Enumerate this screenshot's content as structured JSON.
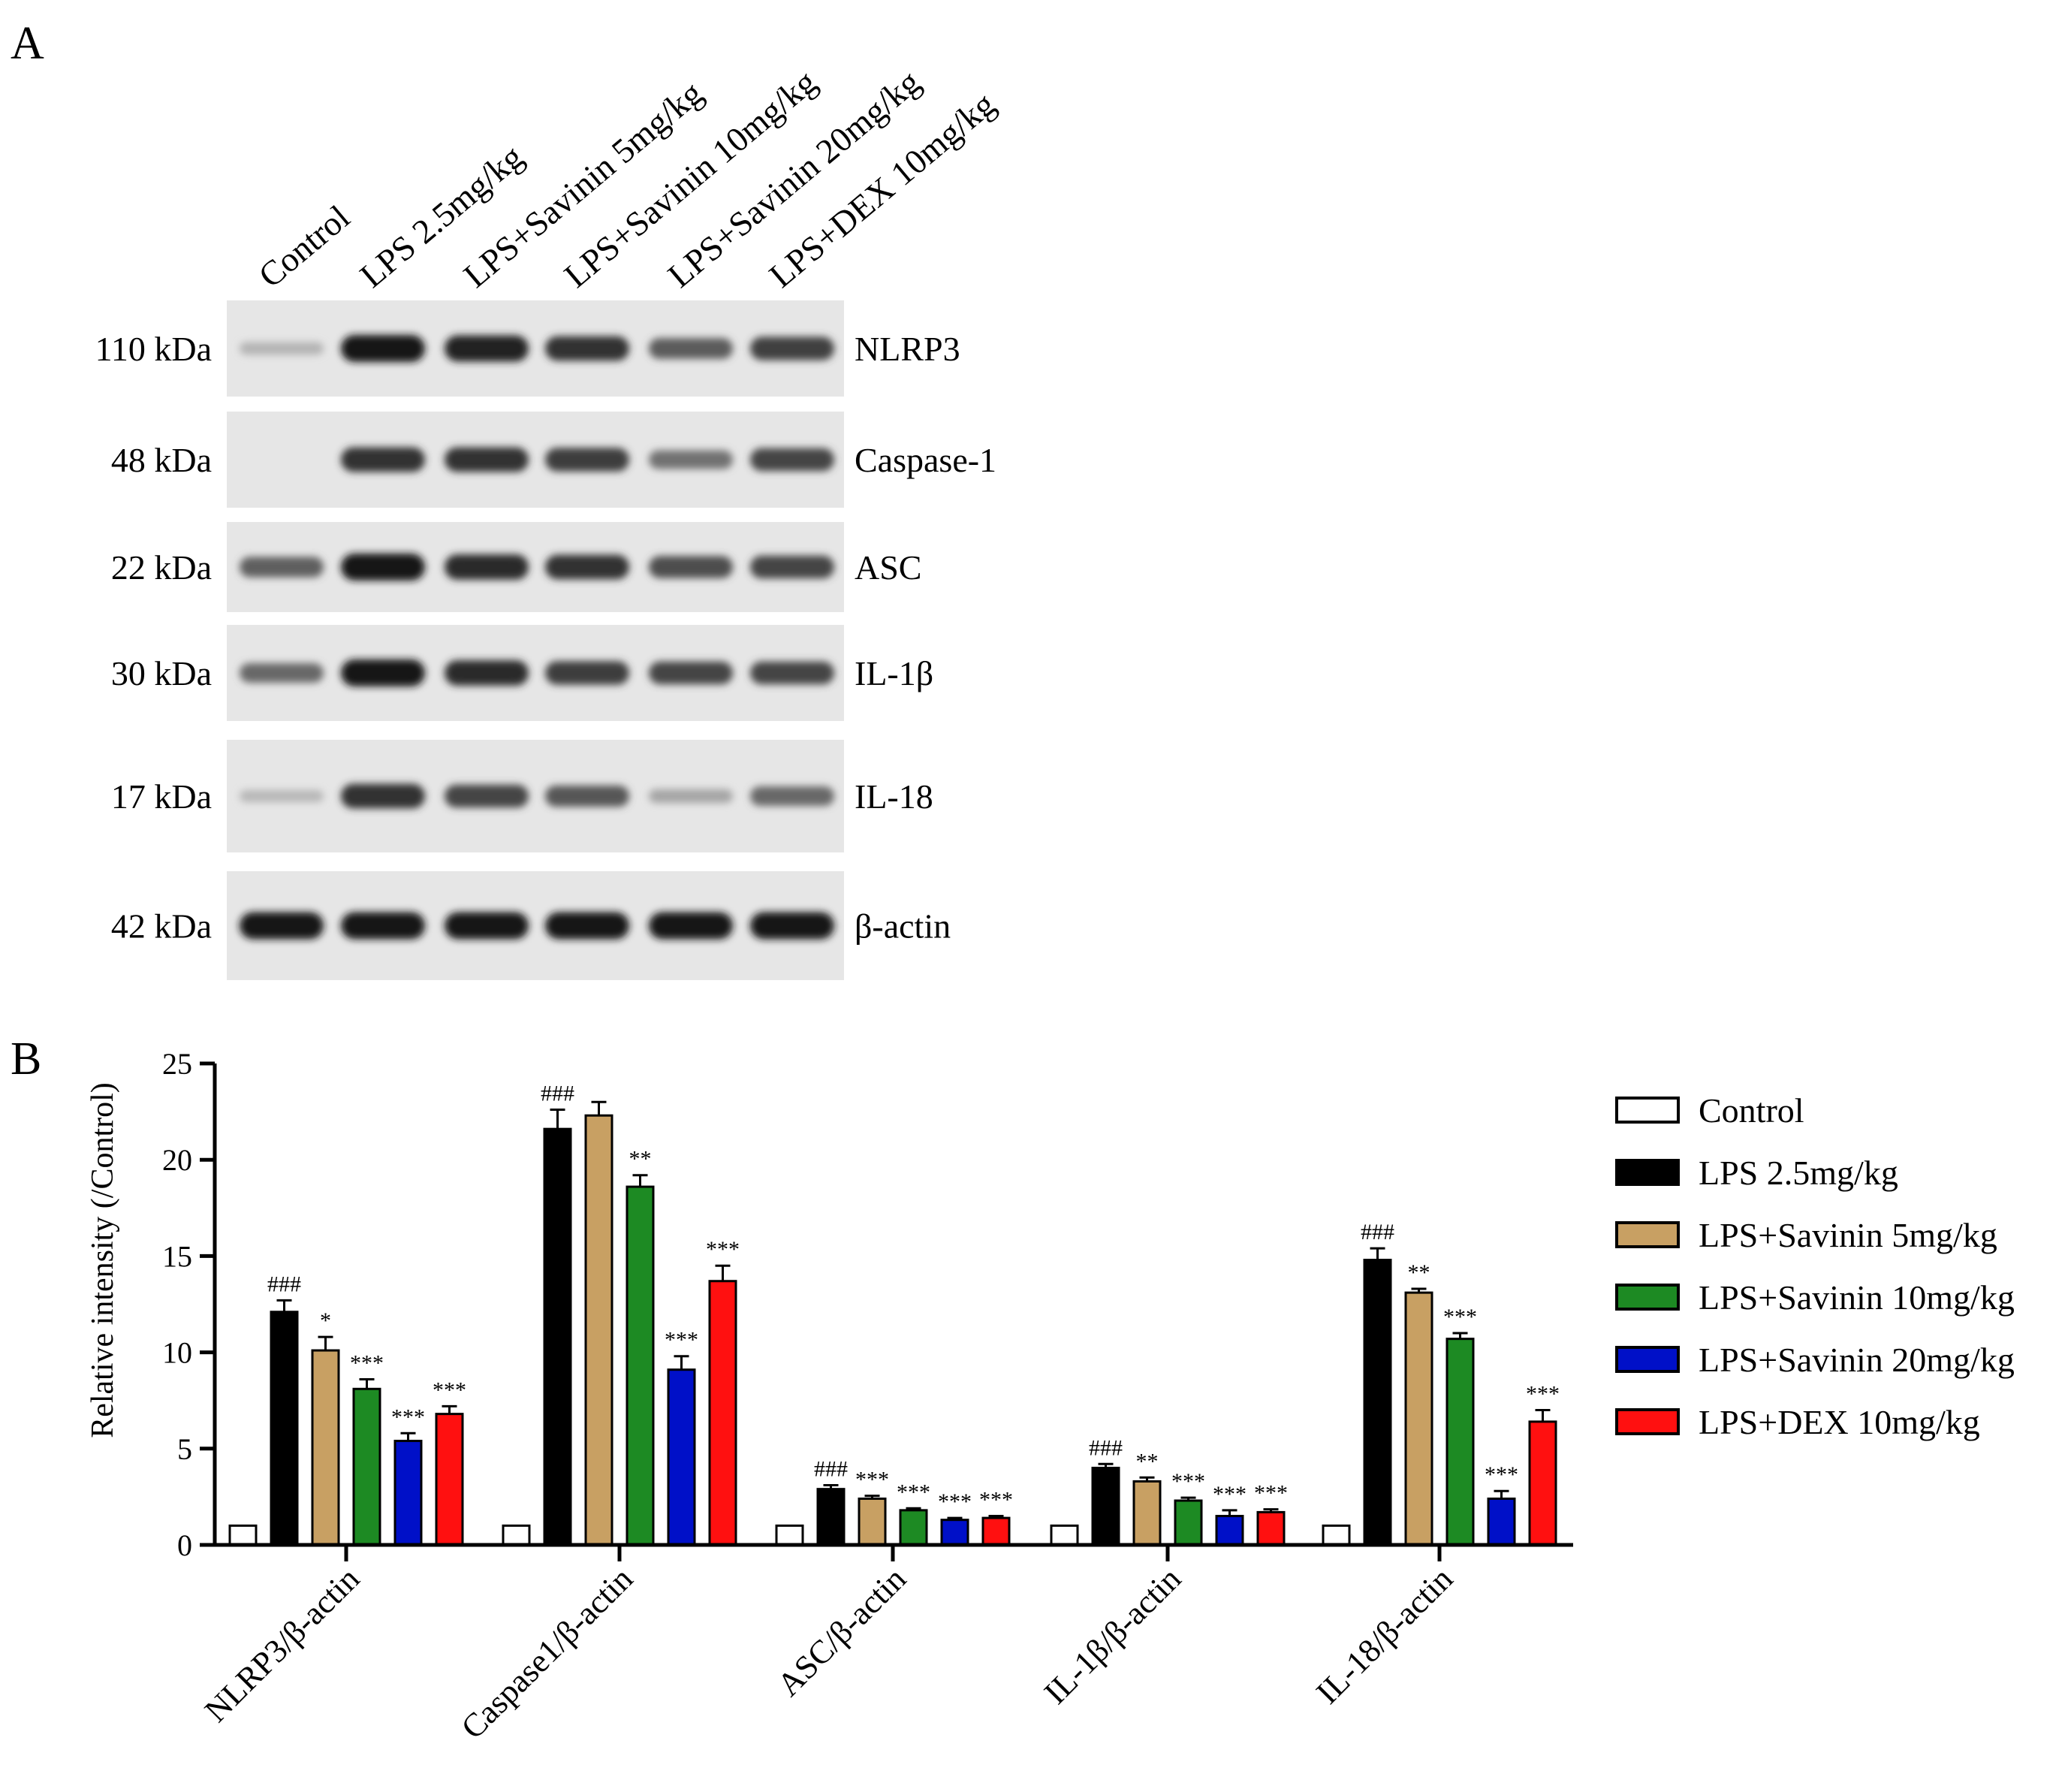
{
  "panel_a": {
    "letter": "A",
    "lanes": [
      "Control",
      "LPS 2.5mg/kg",
      "LPS+Savinin 5mg/kg",
      "LPS+Savinin 10mg/kg",
      "LPS+Savinin 20mg/kg",
      "LPS+DEX 10mg/kg"
    ],
    "blots": [
      {
        "kda": "110 kDa",
        "protein": "NLRP3",
        "intensity": [
          0.12,
          1.0,
          0.95,
          0.85,
          0.62,
          0.78
        ]
      },
      {
        "kda": "48 kDa",
        "protein": "Caspase-1",
        "intensity": [
          0.0,
          0.85,
          0.85,
          0.8,
          0.5,
          0.75
        ]
      },
      {
        "kda": "22 kDa",
        "protein": "ASC",
        "intensity": [
          0.6,
          1.0,
          0.9,
          0.85,
          0.7,
          0.75
        ]
      },
      {
        "kda": "30 kDa",
        "protein": "IL-1β",
        "intensity": [
          0.55,
          1.0,
          0.9,
          0.8,
          0.75,
          0.75
        ]
      },
      {
        "kda": "17 kDa",
        "protein": "IL-18",
        "intensity": [
          0.1,
          0.85,
          0.75,
          0.65,
          0.2,
          0.55
        ]
      },
      {
        "kda": "42 kDa",
        "protein": "β-actin",
        "intensity": [
          1.0,
          1.0,
          1.0,
          1.0,
          1.0,
          1.0
        ]
      }
    ]
  },
  "chart_data": {
    "panel_letter": "B",
    "type": "bar",
    "ylabel": "Relative intensity (/Control)",
    "ylim": [
      0,
      25
    ],
    "yticks": [
      0,
      5,
      10,
      15,
      20,
      25
    ],
    "categories": [
      "NLRP3/β-actin",
      "Caspase1/β-actin",
      "ASC/β-actin",
      "IL-1β/β-actin",
      "IL-18/β-actin"
    ],
    "series": [
      {
        "name": "Control",
        "color": "#ffffff",
        "values": [
          1,
          1,
          1,
          1,
          1
        ],
        "errors": [
          0,
          0,
          0,
          0,
          0
        ],
        "sig": [
          "",
          "",
          "",
          "",
          ""
        ]
      },
      {
        "name": "LPS 2.5mg/kg",
        "color": "#000000",
        "values": [
          12.1,
          21.6,
          2.9,
          4.0,
          14.8
        ],
        "errors": [
          0.6,
          1.0,
          0.2,
          0.2,
          0.6
        ],
        "sig": [
          "###",
          "###",
          "###",
          "###",
          "###"
        ]
      },
      {
        "name": "LPS+Savinin 5mg/kg",
        "color": "#c8a063",
        "values": [
          10.1,
          22.3,
          2.4,
          3.3,
          13.1
        ],
        "errors": [
          0.7,
          0.7,
          0.15,
          0.2,
          0.2
        ],
        "sig": [
          "*",
          "",
          "***",
          "**",
          "**"
        ]
      },
      {
        "name": "LPS+Savinin 10mg/kg",
        "color": "#1d8a23",
        "values": [
          8.1,
          18.6,
          1.8,
          2.3,
          10.7
        ],
        "errors": [
          0.5,
          0.6,
          0.1,
          0.15,
          0.3
        ],
        "sig": [
          "***",
          "**",
          "***",
          "***",
          "***"
        ]
      },
      {
        "name": "LPS+Savinin 20mg/kg",
        "color": "#0010c8",
        "values": [
          5.4,
          9.1,
          1.3,
          1.5,
          2.4
        ],
        "errors": [
          0.4,
          0.7,
          0.1,
          0.3,
          0.4
        ],
        "sig": [
          "***",
          "***",
          "***",
          "***",
          "***"
        ]
      },
      {
        "name": "LPS+DEX 10mg/kg",
        "color": "#ff1010",
        "values": [
          6.8,
          13.7,
          1.4,
          1.7,
          6.4
        ],
        "errors": [
          0.4,
          0.8,
          0.1,
          0.15,
          0.6
        ],
        "sig": [
          "***",
          "***",
          "***",
          "***",
          "***"
        ]
      }
    ],
    "legend_position": "right",
    "grid": false
  }
}
